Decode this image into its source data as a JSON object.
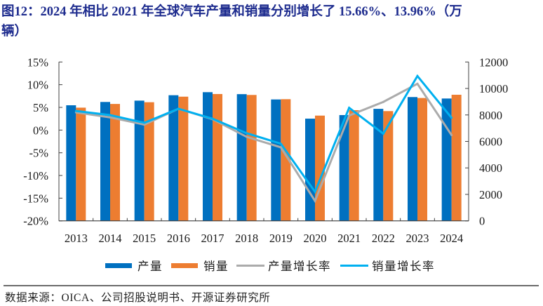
{
  "header": {
    "title_lines": [
      "图12：2024 年相比 2021 年全球汽车产量和销量分别增长了 15.66%、13.96%（万",
      "辆）"
    ]
  },
  "footer": {
    "source": "数据来源：OICA、公司招股说明书、开源证券研究所"
  },
  "chart_data": {
    "type": "bar",
    "title": "图12：2024 年相比 2021 年全球汽车产量和销量分别增长了 15.66%、13.96%（万辆）",
    "xlabel": "",
    "ylabel": "",
    "categories": [
      "2013",
      "2014",
      "2015",
      "2016",
      "2017",
      "2018",
      "2019",
      "2020",
      "2021",
      "2022",
      "2023",
      "2024"
    ],
    "y_left": {
      "range": [
        -20,
        15
      ],
      "unit": "%",
      "ticks": [
        15,
        10,
        5,
        0,
        -5,
        -10,
        -15,
        -20
      ],
      "tick_labels": [
        "15%",
        "10%",
        "5%",
        "0%",
        "-5%",
        "-10%",
        "-15%",
        "-20%"
      ]
    },
    "y_right": {
      "range": [
        0,
        12000
      ],
      "unit": "万辆",
      "ticks": [
        12000,
        10000,
        8000,
        6000,
        4000,
        2000,
        0
      ],
      "tick_labels": [
        "12000",
        "10000",
        "8000",
        "6000",
        "4000",
        "2000",
        "0"
      ]
    },
    "grid": false,
    "legend_position": "bottom",
    "series": [
      {
        "name": "产量",
        "type": "bar",
        "axis": "right",
        "color": "#0070C0",
        "values": [
          8730,
          8980,
          9080,
          9490,
          9720,
          9570,
          9170,
          7720,
          7990,
          8460,
          9350,
          9240
        ]
      },
      {
        "name": "销量",
        "type": "bar",
        "axis": "right",
        "color": "#ED7D31",
        "values": [
          8550,
          8830,
          8960,
          9380,
          9580,
          9510,
          9190,
          7950,
          8360,
          8290,
          9280,
          9525
        ]
      },
      {
        "name": "产量增长率",
        "type": "line",
        "axis": "left",
        "color": "#ABABAB",
        "values": [
          3.9,
          2.8,
          1.2,
          4.7,
          2.4,
          -1.5,
          -3.8,
          -15.6,
          3.2,
          6.2,
          10.2,
          -1.1
        ]
      },
      {
        "name": "销量增长率",
        "type": "line",
        "axis": "left",
        "color": "#00B0F0",
        "values": [
          4.2,
          3.3,
          1.6,
          4.7,
          2.5,
          -0.7,
          -3.0,
          -13.6,
          4.9,
          -0.8,
          11.9,
          2.7
        ]
      }
    ],
    "legend": [
      {
        "label": "产量",
        "kind": "bar",
        "color": "#0070C0"
      },
      {
        "label": "销量",
        "kind": "bar",
        "color": "#ED7D31"
      },
      {
        "label": "产量增长率",
        "kind": "line",
        "color": "#ABABAB"
      },
      {
        "label": "销量增长率",
        "kind": "line",
        "color": "#00B0F0"
      }
    ]
  }
}
